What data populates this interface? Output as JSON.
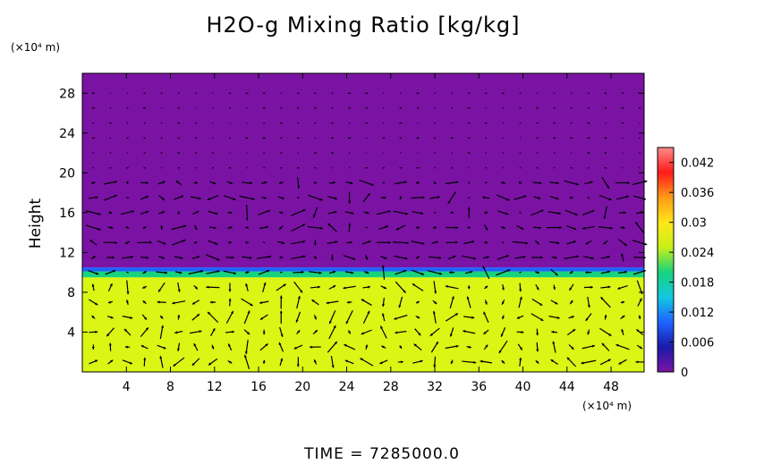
{
  "chart_data": {
    "type": "heatmap",
    "title": "H2O-g Mixing Ratio [kg/kg]",
    "x_unit": "(×10⁴ m)",
    "y_unit": "(×10⁴ m)",
    "ylabel": "Height",
    "footer": "TIME  =  7285000.0",
    "xlim": [
      0,
      51
    ],
    "ylim": [
      0,
      30
    ],
    "x_ticks": [
      4,
      8,
      12,
      16,
      20,
      24,
      28,
      32,
      36,
      40,
      44,
      48
    ],
    "y_ticks": [
      4,
      8,
      12,
      16,
      20,
      24,
      28
    ],
    "layers": [
      {
        "y_from": 0,
        "y_to": 9.5,
        "value": 0.028
      },
      {
        "y_from": 9.5,
        "y_to": 10.1,
        "value": 0.02
      },
      {
        "y_from": 10.1,
        "y_to": 10.5,
        "value": 0.01
      },
      {
        "y_from": 10.5,
        "y_to": 11.0,
        "value": 0.004
      },
      {
        "y_from": 11.0,
        "y_to": 30,
        "value": 0
      }
    ],
    "colorbar": {
      "min": 0,
      "max": 0.045,
      "ticks": [
        "0.042",
        "0.036",
        "0.03",
        "0.024",
        "0.018",
        "0.012",
        "0.006",
        "0"
      ],
      "tick_values": [
        0.042,
        0.036,
        0.03,
        0.024,
        0.018,
        0.012,
        0.006,
        0
      ],
      "colors": [
        "#7b14a6",
        "#1a1aa8",
        "#1e64ff",
        "#12c8e0",
        "#19d27c",
        "#c8f019",
        "#ffe619",
        "#ff9a19",
        "#ff1a1a",
        "#ff8a8a"
      ]
    },
    "vector_field": true,
    "colors": {
      "moist": "#dbf514",
      "dry": "#7a13a4",
      "arrow": "#000000"
    }
  }
}
